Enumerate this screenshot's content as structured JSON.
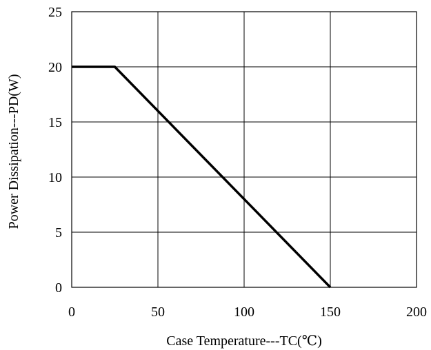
{
  "chart_data": {
    "type": "line",
    "xlabel": "Case Temperature---TC(℃)",
    "ylabel": "Power Dissipation---PD(W)",
    "xlim": [
      0,
      200
    ],
    "ylim": [
      0,
      25
    ],
    "x_ticks": [
      0,
      50,
      100,
      150,
      200
    ],
    "y_ticks": [
      0,
      5,
      10,
      15,
      20,
      25
    ],
    "grid": true,
    "legend": "none",
    "series": [
      {
        "x": [
          0,
          25,
          150
        ],
        "y": [
          20,
          20,
          0
        ],
        "color": "#000000"
      }
    ]
  }
}
